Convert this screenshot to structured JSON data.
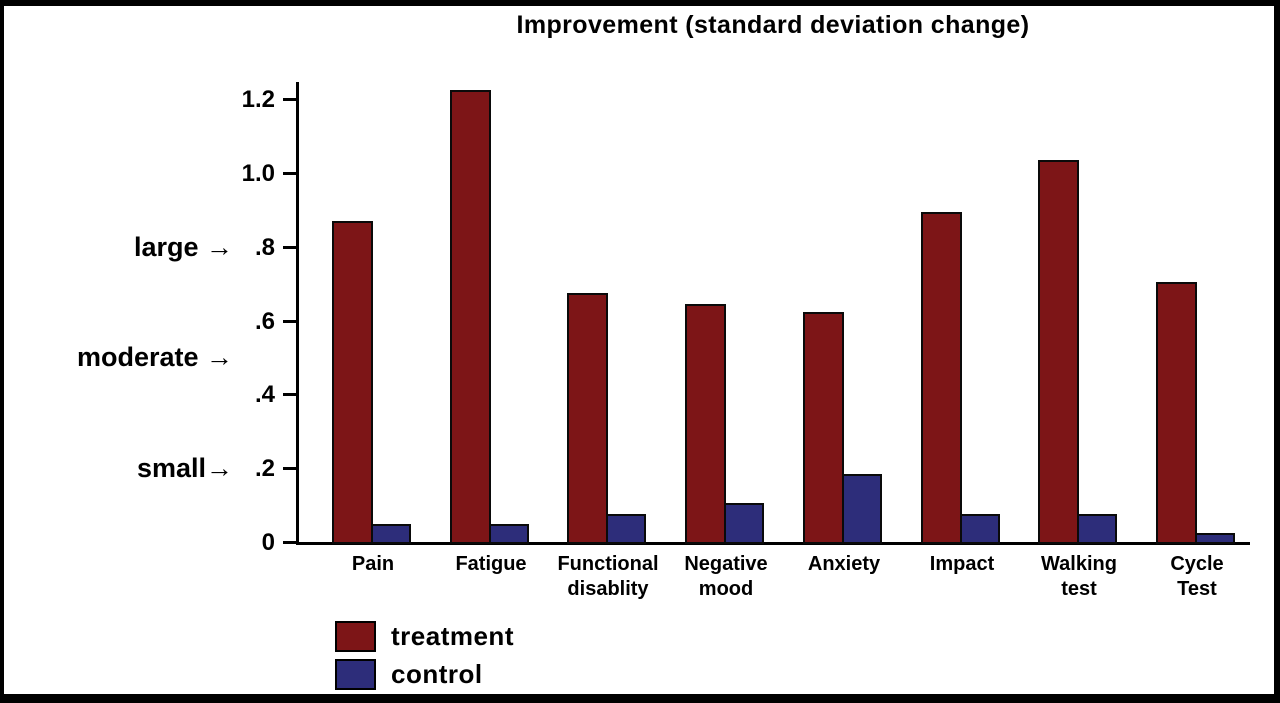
{
  "chart_data": {
    "type": "bar",
    "title": "Improvement (standard deviation change)",
    "categories": [
      "Pain",
      "Fatigue",
      "Functional disablity",
      "Negative mood",
      "Anxiety",
      "Impact",
      "Walking test",
      "Cycle Test"
    ],
    "category_label_lines": [
      [
        "Pain"
      ],
      [
        "Fatigue"
      ],
      [
        "Functional",
        "disablity"
      ],
      [
        "Negative",
        "mood"
      ],
      [
        "Anxiety"
      ],
      [
        "Impact"
      ],
      [
        "Walking",
        "test"
      ],
      [
        "Cycle",
        "Test"
      ]
    ],
    "series": [
      {
        "name": "treatment",
        "color": "#7D1517",
        "values": [
          0.875,
          1.23,
          0.68,
          0.65,
          0.63,
          0.9,
          1.04,
          0.71
        ]
      },
      {
        "name": "control",
        "color": "#2D2D7A",
        "values": [
          0.055,
          0.055,
          0.08,
          0.11,
          0.19,
          0.08,
          0.08,
          0.03
        ]
      }
    ],
    "xlabel": "",
    "ylabel": "",
    "ylim": [
      0,
      1.2
    ],
    "yticks": [
      {
        "label": "0",
        "value": 0
      },
      {
        "label": ".2",
        "value": 0.2
      },
      {
        "label": ".4",
        "value": 0.4
      },
      {
        "label": ".6",
        "value": 0.6
      },
      {
        "label": ".8",
        "value": 0.8
      },
      {
        "label": "1.0",
        "value": 1.0
      },
      {
        "label": "1.2",
        "value": 1.2
      }
    ],
    "grid": false,
    "legend_position": "bottom-left",
    "annotations": [
      {
        "text": "large →",
        "value": 0.8
      },
      {
        "text": "moderate →",
        "value": 0.5
      },
      {
        "text": "small→",
        "value": 0.2
      }
    ]
  },
  "legend": {
    "items": [
      {
        "label": "treatment",
        "color": "#7D1517"
      },
      {
        "label": "control",
        "color": "#2D2D7A"
      }
    ]
  },
  "colors": {
    "treatment": "#7D1517",
    "control": "#2D2D7A",
    "axis": "#000000",
    "frame": "#000000",
    "background": "#FFFFFF"
  }
}
